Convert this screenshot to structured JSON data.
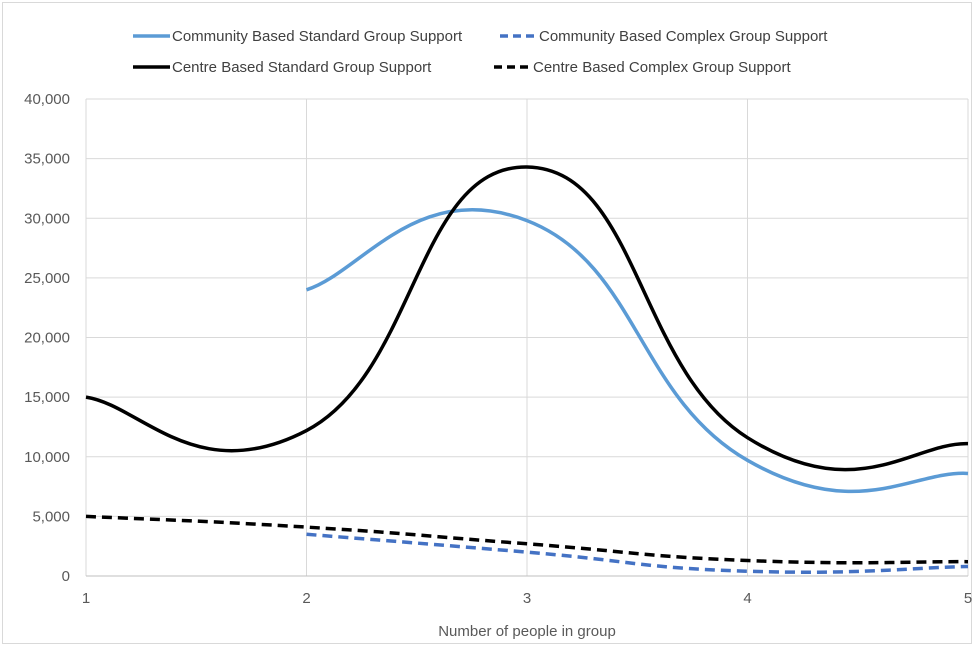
{
  "chart_data": {
    "type": "line",
    "xlabel": "Number of people in group",
    "ylabel": "",
    "xlim": [
      1,
      5
    ],
    "ylim": [
      0,
      40000
    ],
    "x_ticks": [
      "1",
      "2",
      "3",
      "4",
      "5"
    ],
    "y_ticks": [
      "0",
      "5,000",
      "10,000",
      "15,000",
      "20,000",
      "25,000",
      "30,000",
      "35,000",
      "40,000"
    ],
    "grid": true,
    "legend_position": "top",
    "smooth": true,
    "series": [
      {
        "name": "Community Based Standard Group Support",
        "color": "#5b9bd5",
        "dash": "solid",
        "x": [
          2,
          3,
          4,
          5
        ],
        "values": [
          24000,
          29800,
          9700,
          8600
        ]
      },
      {
        "name": "Community Based Complex Group Support",
        "color": "#4472c4",
        "dash": "dashed",
        "x": [
          2,
          3,
          4,
          5
        ],
        "values": [
          3500,
          2000,
          400,
          800
        ]
      },
      {
        "name": "Centre Based Standard Group Support",
        "color": "#000000",
        "dash": "solid",
        "x": [
          1,
          2,
          3,
          4,
          5
        ],
        "values": [
          15000,
          12200,
          34300,
          11600,
          11100
        ]
      },
      {
        "name": "Centre Based Complex Group Support",
        "color": "#000000",
        "dash": "dashed",
        "x": [
          1,
          2,
          3,
          4,
          5
        ],
        "values": [
          5000,
          4100,
          2700,
          1300,
          1200
        ]
      }
    ]
  }
}
